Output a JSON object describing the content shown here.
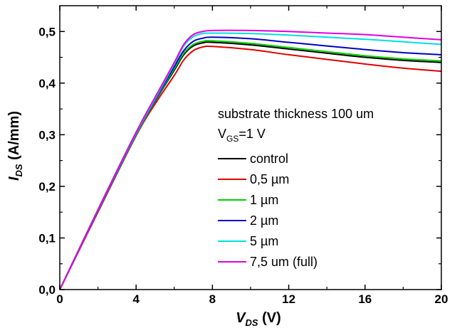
{
  "chart_data": {
    "type": "line",
    "xlabel": {
      "main": "V",
      "sub": "DS",
      "unit": " (V)"
    },
    "ylabel": {
      "main": "I",
      "sub": "DS",
      "unit": " (A/mm)"
    },
    "xlim": [
      0,
      20
    ],
    "ylim": [
      0,
      0.55
    ],
    "x_ticks": [
      0,
      4,
      8,
      12,
      16,
      20
    ],
    "x_tick_labels": [
      "0",
      "4",
      "8",
      "12",
      "16",
      "20"
    ],
    "y_ticks": [
      0,
      0.1,
      0.2,
      0.3,
      0.4,
      0.5
    ],
    "y_tick_labels": [
      "0,0",
      "0,1",
      "0,2",
      "0,3",
      "0,4",
      "0,5"
    ],
    "grid": false,
    "legend_placement": "center-right",
    "annotation": {
      "line1": "substrate thickness 100 um",
      "line2_main": "V",
      "line2_sub": "GS",
      "line2_rest": "=1 V"
    },
    "series": [
      {
        "name": "control",
        "color": "#000000",
        "x": [
          0,
          2,
          4,
          5,
          6,
          6.5,
          7,
          7.5,
          8,
          10,
          12,
          14,
          16,
          18,
          20
        ],
        "y": [
          0,
          0.152,
          0.3,
          0.365,
          0.425,
          0.455,
          0.472,
          0.478,
          0.479,
          0.474,
          0.466,
          0.458,
          0.45,
          0.444,
          0.44
        ]
      },
      {
        "name": "0,5 µm",
        "color": "#e00000",
        "x": [
          0,
          2,
          4,
          5,
          6,
          6.5,
          7,
          7.5,
          8,
          10,
          12,
          14,
          16,
          18,
          20
        ],
        "y": [
          0,
          0.15,
          0.298,
          0.36,
          0.415,
          0.445,
          0.463,
          0.47,
          0.471,
          0.465,
          0.455,
          0.446,
          0.437,
          0.429,
          0.423
        ]
      },
      {
        "name": "1 µm",
        "color": "#00d000",
        "x": [
          0,
          2,
          4,
          5,
          6,
          6.5,
          7,
          7.5,
          8,
          10,
          12,
          14,
          16,
          18,
          20
        ],
        "y": [
          0,
          0.152,
          0.3,
          0.366,
          0.428,
          0.458,
          0.475,
          0.481,
          0.482,
          0.477,
          0.469,
          0.461,
          0.453,
          0.447,
          0.443
        ]
      },
      {
        "name": "2 µm",
        "color": "#0000c0",
        "x": [
          0,
          2,
          4,
          5,
          6,
          6.5,
          7,
          7.5,
          8,
          10,
          12,
          14,
          16,
          18,
          20
        ],
        "y": [
          0,
          0.153,
          0.302,
          0.368,
          0.432,
          0.463,
          0.481,
          0.487,
          0.489,
          0.486,
          0.479,
          0.472,
          0.465,
          0.459,
          0.455
        ]
      },
      {
        "name": "5 µm",
        "color": "#00e0e0",
        "x": [
          0,
          2,
          4,
          5,
          6,
          6.5,
          7,
          7.5,
          8,
          10,
          12,
          14,
          16,
          18,
          20
        ],
        "y": [
          0,
          0.154,
          0.303,
          0.37,
          0.437,
          0.472,
          0.49,
          0.496,
          0.497,
          0.496,
          0.493,
          0.489,
          0.485,
          0.48,
          0.475
        ]
      },
      {
        "name": "7,5 um (full)",
        "color": "#e000e0",
        "x": [
          0,
          2,
          4,
          5,
          6,
          6.5,
          7,
          7.5,
          8,
          10,
          12,
          14,
          16,
          18,
          20
        ],
        "y": [
          0,
          0.155,
          0.305,
          0.373,
          0.44,
          0.475,
          0.494,
          0.5,
          0.502,
          0.502,
          0.5,
          0.497,
          0.494,
          0.489,
          0.484
        ]
      }
    ]
  }
}
